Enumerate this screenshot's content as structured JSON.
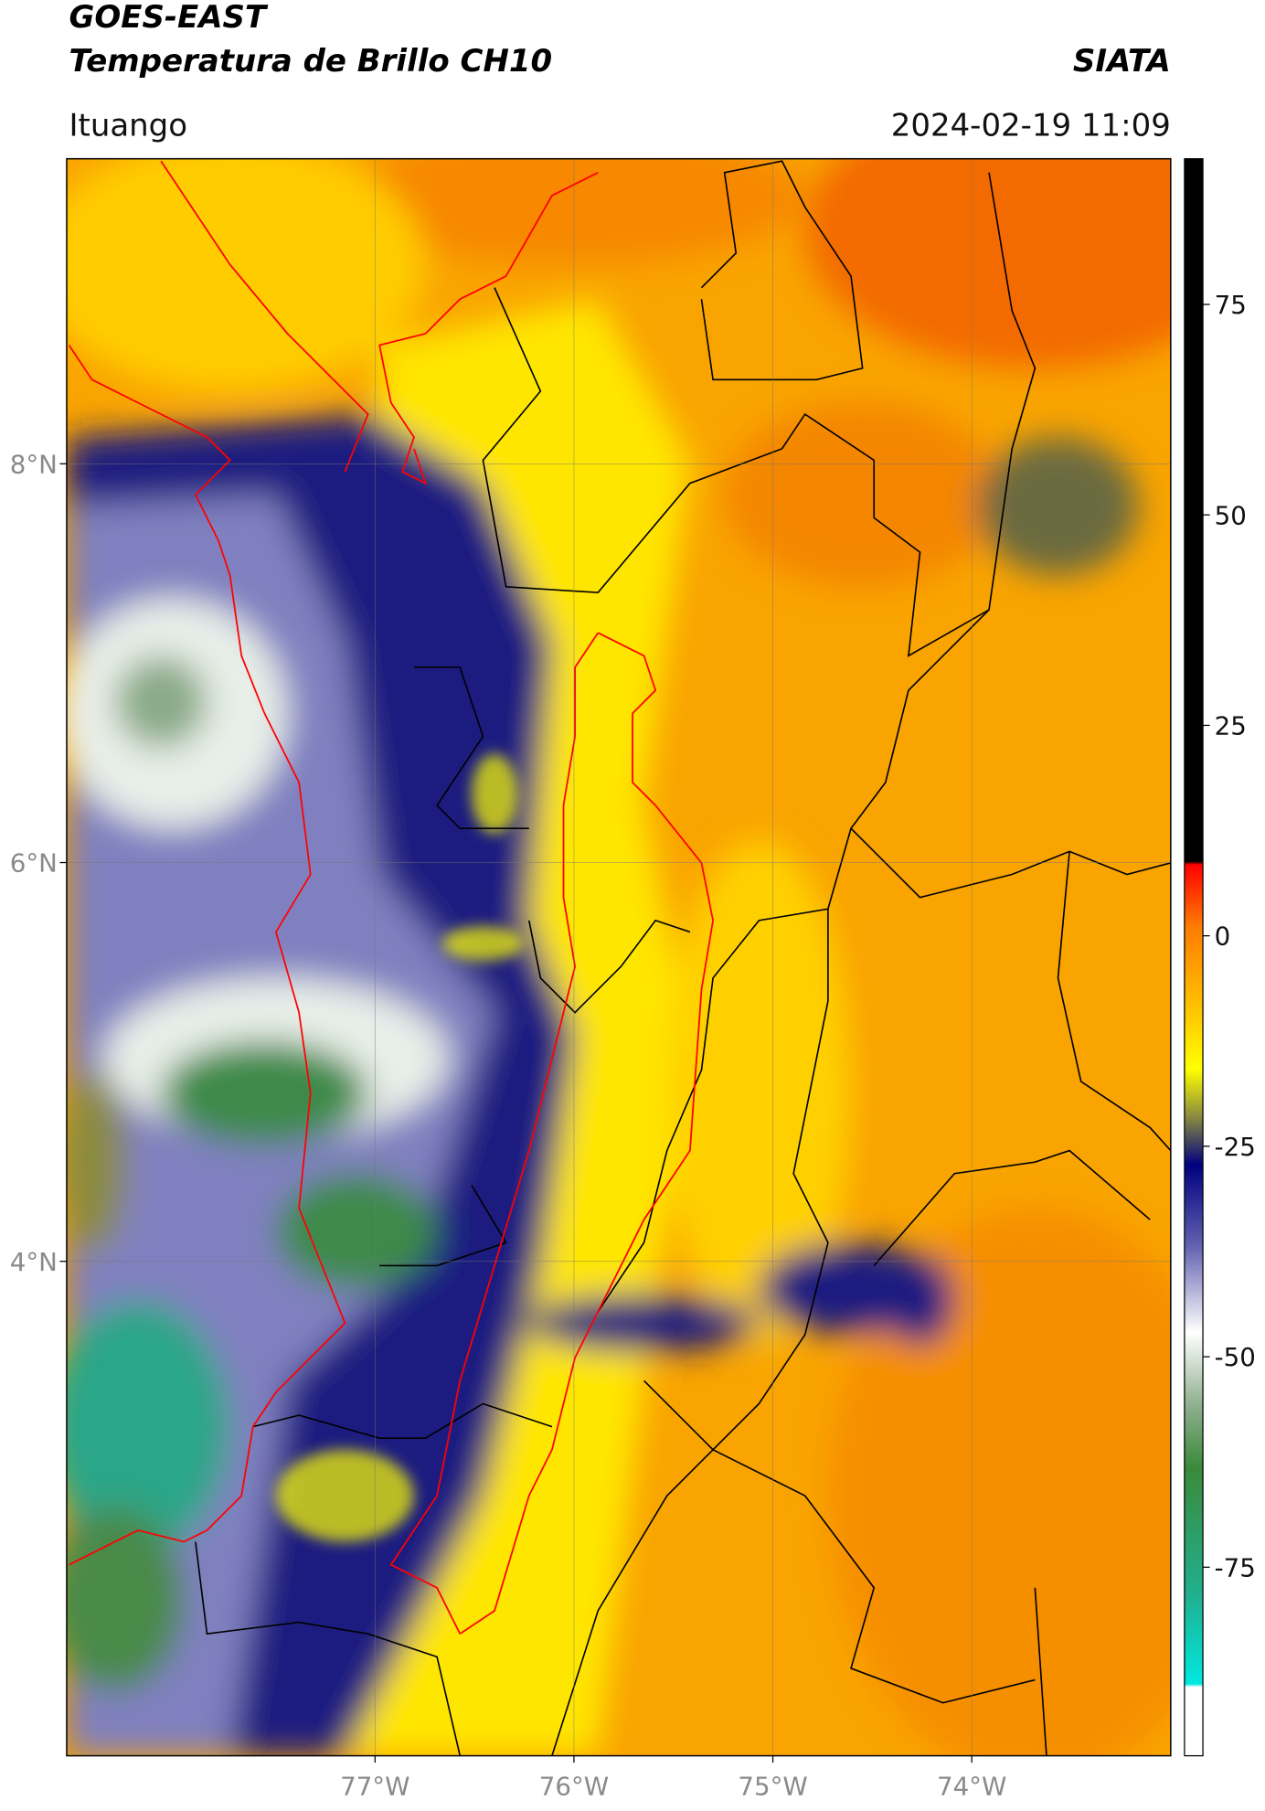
{
  "header": {
    "title": "GOES-EAST",
    "subtitle": "Temperatura de Brillo CH10",
    "source": "SIATA",
    "location": "Ituango",
    "datetime": "2024-02-19 11:09"
  },
  "map": {
    "xlim": [
      -78.55,
      -73.0
    ],
    "ylim": [
      1.52,
      9.53
    ],
    "xticks": [
      {
        "value": -77,
        "label": "77°W"
      },
      {
        "value": -76,
        "label": "76°W"
      },
      {
        "value": -75,
        "label": "75°W"
      },
      {
        "value": -74,
        "label": "74°W"
      }
    ],
    "yticks": [
      {
        "value": 8,
        "label": "8°N"
      },
      {
        "value": 6,
        "label": "6°N"
      },
      {
        "value": 4,
        "label": "4°N"
      }
    ],
    "grid": true
  },
  "colorbar": {
    "lim": [
      -97.4,
      92.3
    ],
    "ticks": [
      75,
      50,
      25,
      0,
      -25,
      -50,
      -75
    ]
  }
}
